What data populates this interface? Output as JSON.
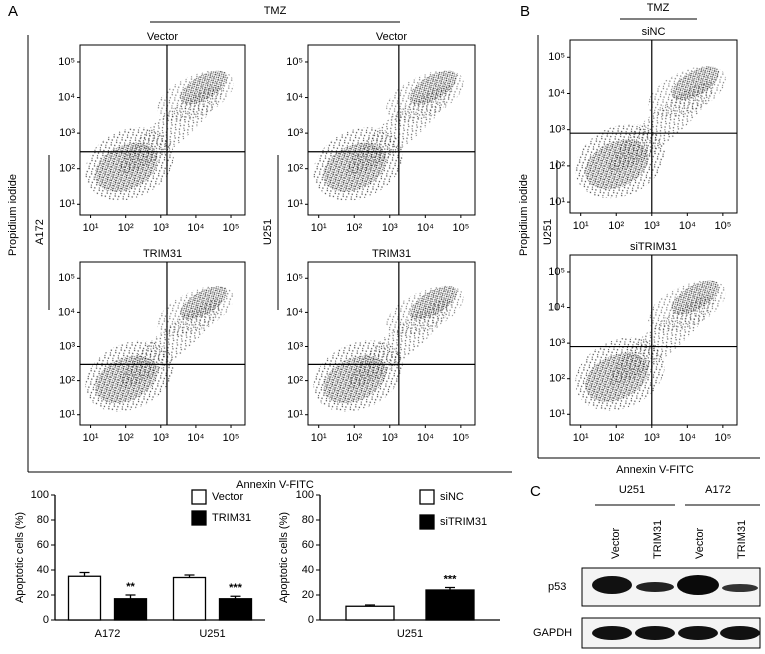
{
  "figure": {
    "panel_labels": [
      "A",
      "B",
      "C"
    ],
    "flow": {
      "x_label": "Annexin V-FITC",
      "y_label": "Propidium iodide",
      "treatment": "TMZ",
      "xlim": [
        5,
        250000
      ],
      "ylim": [
        5,
        300000
      ],
      "xticks": [
        {
          "value": 10,
          "label": "10¹"
        },
        {
          "value": 100,
          "label": "10²"
        },
        {
          "value": 1000,
          "label": "10³"
        },
        {
          "value": 10000,
          "label": "10⁴"
        },
        {
          "value": 100000,
          "label": "10⁵"
        }
      ],
      "yticks": [
        {
          "value": 10,
          "label": "10¹"
        },
        {
          "value": 100,
          "label": "10²"
        },
        {
          "value": 1000,
          "label": "10³"
        },
        {
          "value": 10000,
          "label": "10⁴"
        },
        {
          "value": 100000,
          "label": "10⁵"
        }
      ],
      "panel_a": {
        "cell_lines": [
          "A172",
          "U251"
        ],
        "plots": [
          {
            "title": "Vector",
            "gate": [
              1500,
              300
            ]
          },
          {
            "title": "TRIM31",
            "gate": [
              1500,
              300
            ]
          },
          {
            "title": "Vector",
            "gate": [
              1800,
              300
            ]
          },
          {
            "title": "TRIM31",
            "gate": [
              1800,
              300
            ]
          }
        ]
      },
      "panel_b": {
        "cell_lines": [
          "U251"
        ],
        "plots": [
          {
            "title": "siNC",
            "gate": [
              1000,
              800
            ]
          },
          {
            "title": "siTRIM31",
            "gate": [
              1000,
              800
            ]
          }
        ]
      }
    },
    "blot": {
      "groups": [
        "U251",
        "A172"
      ],
      "lanes": [
        "Vector",
        "TRIM31",
        "Vector",
        "TRIM31"
      ],
      "rows": [
        "p53",
        "GAPDH"
      ]
    }
  },
  "chart_data": [
    {
      "type": "bar",
      "y_label": "Apoptotic cells (%)",
      "categories": [
        "A172",
        "U251"
      ],
      "series": [
        {
          "name": "Vector",
          "color": "#ffffff",
          "values": [
            35,
            34
          ],
          "errors": [
            3,
            2
          ]
        },
        {
          "name": "TRIM31",
          "color": "#000000",
          "values": [
            17,
            17
          ],
          "errors": [
            3,
            2
          ],
          "significance": [
            "**",
            "***"
          ]
        }
      ],
      "ylim": [
        0,
        100
      ],
      "yticks": [
        0,
        20,
        40,
        60,
        80,
        100
      ]
    },
    {
      "type": "bar",
      "y_label": "Apoptotic cells (%)",
      "categories": [
        "U251"
      ],
      "series": [
        {
          "name": "siNC",
          "color": "#ffffff",
          "values": [
            11
          ],
          "errors": [
            1
          ]
        },
        {
          "name": "siTRIM31",
          "color": "#000000",
          "values": [
            24
          ],
          "errors": [
            2
          ],
          "significance": [
            "***"
          ]
        }
      ],
      "ylim": [
        0,
        100
      ],
      "yticks": [
        0,
        20,
        40,
        60,
        80,
        100
      ]
    }
  ]
}
